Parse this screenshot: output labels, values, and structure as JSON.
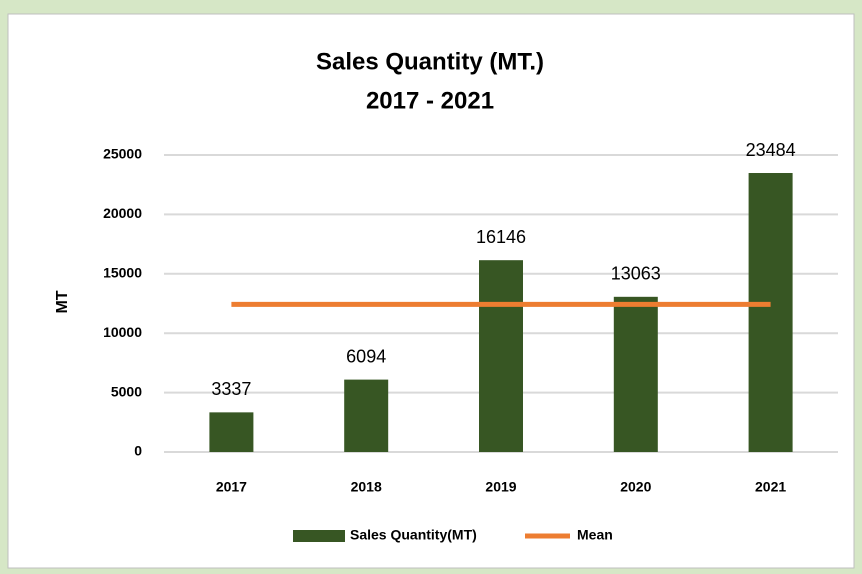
{
  "chart_data": {
    "type": "bar",
    "title": "Sales Quantity (MT.)",
    "subtitle": "2017 - 2021",
    "y_label": "MT",
    "categories": [
      "2017",
      "2018",
      "2019",
      "2020",
      "2021"
    ],
    "series": [
      {
        "name": "Sales Quantity(MT)",
        "type": "bar",
        "color": "#375623",
        "values": [
          3337,
          6094,
          16146,
          13063,
          23484
        ]
      },
      {
        "name": "Mean",
        "type": "line",
        "color": "#ed7d31",
        "values": [
          12424.8,
          12424.8,
          12424.8,
          12424.8,
          12424.8
        ]
      }
    ],
    "ylim": [
      0,
      25000
    ],
    "yticks": [
      0,
      5000,
      10000,
      15000,
      20000,
      25000
    ],
    "grid": true,
    "legend": "bottom"
  }
}
